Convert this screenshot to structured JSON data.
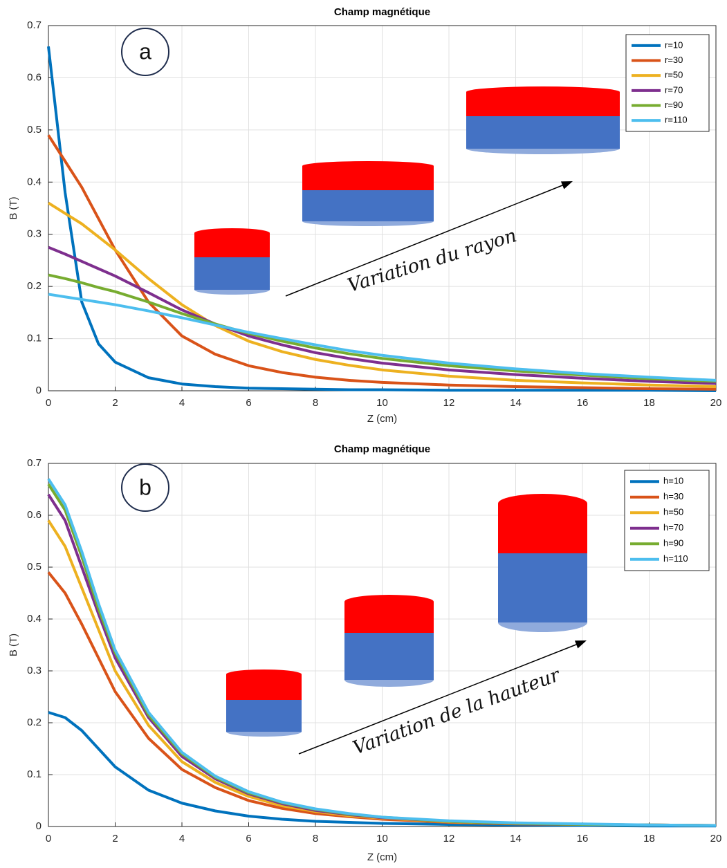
{
  "chart_data": [
    {
      "type": "line",
      "title": "Champ magnétique",
      "xlabel": "Z (cm)",
      "ylabel": "B (T)",
      "annotations": [
        "a",
        "Variation du rayon"
      ],
      "x": [
        0,
        0.5,
        1,
        1.5,
        2,
        3,
        4,
        5,
        6,
        7,
        8,
        9,
        10,
        12,
        14,
        16,
        18,
        20
      ],
      "series": [
        {
          "name": "r=10",
          "color": "#0072bd",
          "values": [
            0.66,
            0.38,
            0.17,
            0.09,
            0.055,
            0.025,
            0.013,
            0.008,
            0.005,
            0.004,
            0.003,
            0.002,
            0.002,
            0.001,
            0.001,
            0.001,
            0.001,
            0
          ]
        },
        {
          "name": "r=30",
          "color": "#d95319",
          "values": [
            0.49,
            0.44,
            0.39,
            0.33,
            0.27,
            0.17,
            0.105,
            0.07,
            0.048,
            0.035,
            0.026,
            0.02,
            0.016,
            0.011,
            0.008,
            0.006,
            0.004,
            0.003
          ]
        },
        {
          "name": "r=50",
          "color": "#edb120",
          "values": [
            0.36,
            0.34,
            0.32,
            0.295,
            0.27,
            0.215,
            0.165,
            0.125,
            0.095,
            0.075,
            0.06,
            0.049,
            0.04,
            0.028,
            0.02,
            0.015,
            0.011,
            0.008
          ]
        },
        {
          "name": "r=70",
          "color": "#7e2f8e",
          "values": [
            0.275,
            0.262,
            0.248,
            0.234,
            0.22,
            0.188,
            0.155,
            0.128,
            0.105,
            0.088,
            0.073,
            0.062,
            0.053,
            0.04,
            0.031,
            0.024,
            0.018,
            0.014
          ]
        },
        {
          "name": "r=90",
          "color": "#77ac30",
          "values": [
            0.222,
            0.215,
            0.207,
            0.198,
            0.19,
            0.17,
            0.148,
            0.128,
            0.11,
            0.095,
            0.082,
            0.071,
            0.062,
            0.048,
            0.038,
            0.03,
            0.023,
            0.018
          ]
        },
        {
          "name": "r=110",
          "color": "#4dbeee",
          "values": [
            0.185,
            0.18,
            0.175,
            0.17,
            0.165,
            0.153,
            0.14,
            0.126,
            0.112,
            0.1,
            0.088,
            0.077,
            0.068,
            0.053,
            0.042,
            0.033,
            0.026,
            0.02
          ]
        }
      ],
      "xlim": [
        0,
        20
      ],
      "xticks": [
        0,
        2,
        4,
        6,
        8,
        10,
        12,
        14,
        16,
        18,
        20
      ],
      "ylim": [
        0,
        0.7
      ],
      "yticks": [
        0,
        0.1,
        0.2,
        0.3,
        0.4,
        0.5,
        0.6,
        0.7
      ],
      "grid": true,
      "legend": "upper right"
    },
    {
      "type": "line",
      "title": "Champ magnétique",
      "xlabel": "Z (cm)",
      "ylabel": "B (T)",
      "annotations": [
        "b",
        "Variation de la hauteur"
      ],
      "x": [
        0,
        0.5,
        1,
        1.5,
        2,
        3,
        4,
        5,
        6,
        7,
        8,
        9,
        10,
        12,
        14,
        16,
        18,
        20
      ],
      "series": [
        {
          "name": "h=10",
          "color": "#0072bd",
          "values": [
            0.22,
            0.21,
            0.185,
            0.15,
            0.115,
            0.07,
            0.045,
            0.03,
            0.02,
            0.014,
            0.01,
            0.008,
            0.006,
            0.004,
            0.003,
            0.002,
            0.001,
            0.001
          ]
        },
        {
          "name": "h=30",
          "color": "#d95319",
          "values": [
            0.49,
            0.45,
            0.39,
            0.325,
            0.26,
            0.17,
            0.11,
            0.075,
            0.05,
            0.035,
            0.025,
            0.019,
            0.014,
            0.008,
            0.005,
            0.004,
            0.003,
            0.002
          ]
        },
        {
          "name": "h=50",
          "color": "#edb120",
          "values": [
            0.59,
            0.54,
            0.46,
            0.38,
            0.3,
            0.195,
            0.125,
            0.085,
            0.058,
            0.04,
            0.029,
            0.021,
            0.016,
            0.009,
            0.006,
            0.004,
            0.003,
            0.002
          ]
        },
        {
          "name": "h=70",
          "color": "#7e2f8e",
          "values": [
            0.64,
            0.59,
            0.5,
            0.41,
            0.325,
            0.21,
            0.135,
            0.092,
            0.063,
            0.044,
            0.031,
            0.023,
            0.017,
            0.01,
            0.006,
            0.004,
            0.003,
            0.002
          ]
        },
        {
          "name": "h=90",
          "color": "#77ac30",
          "values": [
            0.66,
            0.61,
            0.52,
            0.42,
            0.335,
            0.215,
            0.14,
            0.095,
            0.065,
            0.046,
            0.033,
            0.024,
            0.018,
            0.01,
            0.006,
            0.004,
            0.003,
            0.002
          ]
        },
        {
          "name": "h=110",
          "color": "#4dbeee",
          "values": [
            0.67,
            0.62,
            0.53,
            0.43,
            0.34,
            0.22,
            0.143,
            0.097,
            0.067,
            0.047,
            0.034,
            0.025,
            0.018,
            0.011,
            0.007,
            0.005,
            0.003,
            0.002
          ]
        }
      ],
      "xlim": [
        0,
        20
      ],
      "xticks": [
        0,
        2,
        4,
        6,
        8,
        10,
        12,
        14,
        16,
        18,
        20
      ],
      "ylim": [
        0,
        0.7
      ],
      "yticks": [
        0,
        0.1,
        0.2,
        0.3,
        0.4,
        0.5,
        0.6,
        0.7
      ],
      "grid": true,
      "legend": "upper right"
    }
  ]
}
